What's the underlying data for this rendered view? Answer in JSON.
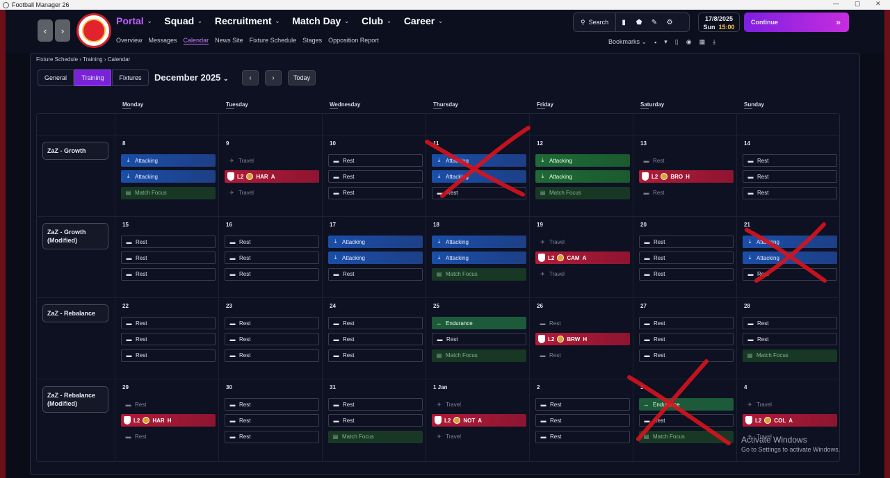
{
  "window": {
    "title": "Football Manager 26"
  },
  "nav": {
    "main": [
      {
        "label": "Portal"
      },
      {
        "label": "Squad"
      },
      {
        "label": "Recruitment"
      },
      {
        "label": "Match Day"
      },
      {
        "label": "Club"
      },
      {
        "label": "Career"
      }
    ],
    "sub": [
      {
        "label": "Overview"
      },
      {
        "label": "Messages"
      },
      {
        "label": "Calendar"
      },
      {
        "label": "News Site"
      },
      {
        "label": "Fixture Schedule"
      },
      {
        "label": "Stages"
      },
      {
        "label": "Opposition Report"
      }
    ]
  },
  "topright": {
    "search_label": "Search",
    "date": "17/8/2025",
    "day": "Sun",
    "time": "15:00",
    "continue_label": "Continue",
    "bookmarks_label": "Bookmarks"
  },
  "breadcrumb": [
    "Fixture Schedule",
    "Training",
    "Calendar"
  ],
  "calendar": {
    "tabs": [
      "General",
      "Training",
      "Fixtures"
    ],
    "month": "December 2025",
    "today_label": "Today",
    "days": [
      "Monday",
      "Tuesday",
      "Wednesday",
      "Thursday",
      "Friday",
      "Saturday",
      "Sunday"
    ],
    "weeks": [
      {
        "label": "ZaZ - Growth",
        "days": [
          {
            "num": "8",
            "s": [
              {
                "k": "attack",
                "t": "Attacking"
              },
              {
                "k": "attack",
                "t": "Attacking"
              },
              {
                "k": "focus",
                "t": "Match Focus"
              }
            ]
          },
          {
            "num": "9",
            "s": [
              {
                "k": "travel",
                "t": "Travel"
              },
              {
                "k": "match",
                "comp": "L2",
                "opp": "HAR",
                "ha": "A"
              },
              {
                "k": "travel",
                "t": "Travel"
              }
            ]
          },
          {
            "num": "10",
            "s": [
              {
                "k": "rest",
                "t": "Rest"
              },
              {
                "k": "rest",
                "t": "Rest"
              },
              {
                "k": "rest",
                "t": "Rest"
              }
            ]
          },
          {
            "num": "11",
            "s": [
              {
                "k": "attack",
                "t": "Attacking"
              },
              {
                "k": "attack",
                "t": "Attacking"
              },
              {
                "k": "rest",
                "t": "Rest"
              }
            ]
          },
          {
            "num": "12",
            "s": [
              {
                "k": "greenb",
                "t": "Attacking"
              },
              {
                "k": "greenb",
                "t": "Attacking"
              },
              {
                "k": "focus",
                "t": "Match Focus"
              }
            ]
          },
          {
            "num": "13",
            "s": [
              {
                "k": "restdim",
                "t": "Rest"
              },
              {
                "k": "match",
                "comp": "L2",
                "opp": "BRO",
                "ha": "H"
              },
              {
                "k": "restdim",
                "t": "Rest"
              }
            ]
          },
          {
            "num": "14",
            "s": [
              {
                "k": "rest",
                "t": "Rest"
              },
              {
                "k": "rest",
                "t": "Rest"
              },
              {
                "k": "rest",
                "t": "Rest"
              }
            ]
          }
        ]
      },
      {
        "label": "ZaZ - Growth (Modified)",
        "days": [
          {
            "num": "15",
            "s": [
              {
                "k": "rest",
                "t": "Rest"
              },
              {
                "k": "rest",
                "t": "Rest"
              },
              {
                "k": "rest",
                "t": "Rest"
              }
            ]
          },
          {
            "num": "16",
            "s": [
              {
                "k": "rest",
                "t": "Rest"
              },
              {
                "k": "rest",
                "t": "Rest"
              },
              {
                "k": "rest",
                "t": "Rest"
              }
            ]
          },
          {
            "num": "17",
            "s": [
              {
                "k": "attack",
                "t": "Attacking"
              },
              {
                "k": "attack",
                "t": "Attacking"
              },
              {
                "k": "rest",
                "t": "Rest"
              }
            ]
          },
          {
            "num": "18",
            "s": [
              {
                "k": "attack",
                "t": "Attacking"
              },
              {
                "k": "attack",
                "t": "Attacking"
              },
              {
                "k": "focus",
                "t": "Match Focus"
              }
            ]
          },
          {
            "num": "19",
            "s": [
              {
                "k": "travel",
                "t": "Travel"
              },
              {
                "k": "match",
                "comp": "L2",
                "opp": "CAM",
                "ha": "A"
              },
              {
                "k": "travel",
                "t": "Travel"
              }
            ]
          },
          {
            "num": "20",
            "s": [
              {
                "k": "rest",
                "t": "Rest"
              },
              {
                "k": "rest",
                "t": "Rest"
              },
              {
                "k": "rest",
                "t": "Rest"
              }
            ]
          },
          {
            "num": "21",
            "s": [
              {
                "k": "attack",
                "t": "Attacking"
              },
              {
                "k": "attack",
                "t": "Attacking"
              },
              {
                "k": "rest",
                "t": "Rest"
              }
            ]
          }
        ]
      },
      {
        "label": "ZaZ - Rebalance",
        "days": [
          {
            "num": "22",
            "s": [
              {
                "k": "rest",
                "t": "Rest"
              },
              {
                "k": "rest",
                "t": "Rest"
              },
              {
                "k": "rest",
                "t": "Rest"
              }
            ]
          },
          {
            "num": "23",
            "s": [
              {
                "k": "rest",
                "t": "Rest"
              },
              {
                "k": "rest",
                "t": "Rest"
              },
              {
                "k": "rest",
                "t": "Rest"
              }
            ]
          },
          {
            "num": "24",
            "s": [
              {
                "k": "rest",
                "t": "Rest"
              },
              {
                "k": "rest",
                "t": "Rest"
              },
              {
                "k": "rest",
                "t": "Rest"
              }
            ]
          },
          {
            "num": "25",
            "s": [
              {
                "k": "endur",
                "t": "Endurance"
              },
              {
                "k": "rest",
                "t": "Rest"
              },
              {
                "k": "focus",
                "t": "Match Focus"
              }
            ]
          },
          {
            "num": "26",
            "s": [
              {
                "k": "restdim",
                "t": "Rest"
              },
              {
                "k": "match",
                "comp": "L2",
                "opp": "BRW",
                "ha": "H"
              },
              {
                "k": "restdim",
                "t": "Rest"
              }
            ]
          },
          {
            "num": "27",
            "s": [
              {
                "k": "rest",
                "t": "Rest"
              },
              {
                "k": "rest",
                "t": "Rest"
              },
              {
                "k": "rest",
                "t": "Rest"
              }
            ]
          },
          {
            "num": "28",
            "s": [
              {
                "k": "rest",
                "t": "Rest"
              },
              {
                "k": "rest",
                "t": "Rest"
              },
              {
                "k": "focus",
                "t": "Match Focus"
              }
            ]
          }
        ]
      },
      {
        "label": "ZaZ - Rebalance (Modified)",
        "days": [
          {
            "num": "29",
            "s": [
              {
                "k": "restdim",
                "t": "Rest"
              },
              {
                "k": "match",
                "comp": "L2",
                "opp": "HAR",
                "ha": "H"
              },
              {
                "k": "restdim",
                "t": "Rest"
              }
            ]
          },
          {
            "num": "30",
            "s": [
              {
                "k": "rest",
                "t": "Rest"
              },
              {
                "k": "rest",
                "t": "Rest"
              },
              {
                "k": "rest",
                "t": "Rest"
              }
            ]
          },
          {
            "num": "31",
            "s": [
              {
                "k": "rest",
                "t": "Rest"
              },
              {
                "k": "rest",
                "t": "Rest"
              },
              {
                "k": "focus",
                "t": "Match Focus"
              }
            ]
          },
          {
            "num": "1 Jan",
            "s": [
              {
                "k": "travel",
                "t": "Travel"
              },
              {
                "k": "match",
                "comp": "L2",
                "opp": "NOT",
                "ha": "A"
              },
              {
                "k": "travel",
                "t": "Travel"
              }
            ]
          },
          {
            "num": "2",
            "s": [
              {
                "k": "rest",
                "t": "Rest"
              },
              {
                "k": "rest",
                "t": "Rest"
              },
              {
                "k": "rest",
                "t": "Rest"
              }
            ]
          },
          {
            "num": "3",
            "s": [
              {
                "k": "endur",
                "t": "Endurance"
              },
              {
                "k": "rest",
                "t": "Rest"
              },
              {
                "k": "focus",
                "t": "Match Focus"
              }
            ]
          },
          {
            "num": "4",
            "s": [
              {
                "k": "travel",
                "t": "Travel"
              },
              {
                "k": "match",
                "comp": "L2",
                "opp": "COL",
                "ha": "A"
              },
              {
                "k": "travel",
                "t": "Travel"
              }
            ]
          }
        ]
      }
    ]
  },
  "watermark": {
    "line1": "Activate Windows",
    "line2": "Go to Settings to activate Windows."
  }
}
